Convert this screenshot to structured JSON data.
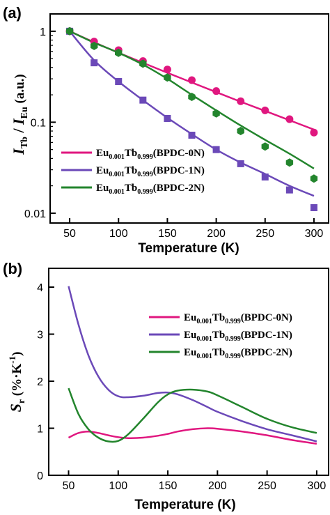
{
  "chart_data": [
    {
      "panel_label": "(a)",
      "type": "scatter",
      "xlabel": "Temperature (K)",
      "ylabel": {
        "main": "I",
        "sub": "Tb",
        "sep": " / ",
        "main2": "I",
        "sub2": "Eu",
        "unit": " (a.u.)"
      },
      "x_ticks": [
        50,
        100,
        150,
        200,
        250,
        300
      ],
      "y_ticks": [
        0.01,
        0.1,
        1
      ],
      "y_tick_labels": [
        "0.01",
        "0.1",
        "1"
      ],
      "xlim": [
        30,
        315
      ],
      "ylim": [
        0.0078,
        1.55
      ],
      "y_scale": "log",
      "legend_position": "bottom-left",
      "x": [
        50,
        75,
        100,
        125,
        150,
        175,
        200,
        225,
        250,
        275,
        300
      ],
      "series": [
        {
          "legend": {
            "a": "Eu",
            "a_sub": "0.001",
            "b": "Tb",
            "b_sub": "0.999",
            "rest": "(BPDC-0N)"
          },
          "color": "#e0177f",
          "marker": "circle",
          "points": [
            1.0,
            0.77,
            0.62,
            0.47,
            0.38,
            0.29,
            0.22,
            0.17,
            0.135,
            0.108,
            0.077
          ],
          "fit": [
            1.0,
            0.757,
            0.58,
            0.45,
            0.35,
            0.273,
            0.214,
            0.168,
            0.133,
            0.105,
            0.083
          ]
        },
        {
          "legend": {
            "a": "Eu",
            "a_sub": "0.001",
            "b": "Tb",
            "b_sub": "0.999",
            "rest": "(BPDC-1N)"
          },
          "color": "#6b49b8",
          "marker": "square",
          "points": [
            1.0,
            0.45,
            0.28,
            0.175,
            0.11,
            0.072,
            0.05,
            0.035,
            0.025,
            0.018,
            0.0115
          ],
          "fit": [
            1.0,
            0.48,
            0.28,
            0.175,
            0.112,
            0.074,
            0.05,
            0.036,
            0.027,
            0.02,
            0.0155
          ]
        },
        {
          "legend": {
            "a": "Eu",
            "a_sub": "0.001",
            "b": "Tb",
            "b_sub": "0.999",
            "rest": "(BPDC-2N)"
          },
          "color": "#23852d",
          "marker": "hexagon",
          "points": [
            1.0,
            0.69,
            0.58,
            0.44,
            0.31,
            0.19,
            0.125,
            0.08,
            0.054,
            0.036,
            0.024
          ],
          "fit": [
            1.0,
            0.75,
            0.58,
            0.43,
            0.3,
            0.2,
            0.135,
            0.092,
            0.064,
            0.045,
            0.031
          ]
        }
      ]
    },
    {
      "panel_label": "(b)",
      "type": "line",
      "xlabel": "Temperature (K)",
      "ylabel": {
        "main": "S",
        "sub": "r",
        "unit": " (%·K",
        "sup": "-1",
        "close": ")"
      },
      "x_ticks": [
        50,
        100,
        150,
        200,
        250,
        300
      ],
      "y_ticks": [
        0,
        1,
        2,
        3,
        4
      ],
      "xlim": [
        30,
        312
      ],
      "ylim": [
        0,
        4.4
      ],
      "legend_position": "top-right",
      "x": [
        50,
        60,
        70,
        80,
        90,
        100,
        110,
        125,
        140,
        150,
        160,
        175,
        190,
        200,
        225,
        250,
        275,
        300
      ],
      "series": [
        {
          "legend": {
            "a": "Eu",
            "a_sub": "0.001",
            "b": "Tb",
            "b_sub": "0.999",
            "rest": "(BPDC-0N)"
          },
          "color": "#e0177f",
          "values": [
            0.8,
            0.9,
            0.93,
            0.9,
            0.85,
            0.81,
            0.79,
            0.8,
            0.84,
            0.88,
            0.93,
            0.98,
            1.0,
            0.99,
            0.93,
            0.85,
            0.75,
            0.67
          ]
        },
        {
          "legend": {
            "a": "Eu",
            "a_sub": "0.001",
            "b": "Tb",
            "b_sub": "0.999",
            "rest": "(BPDC-1N)"
          },
          "color": "#6b49b8",
          "values": [
            4.02,
            3.2,
            2.55,
            2.1,
            1.82,
            1.68,
            1.66,
            1.69,
            1.75,
            1.76,
            1.72,
            1.6,
            1.45,
            1.35,
            1.15,
            0.98,
            0.85,
            0.72
          ]
        },
        {
          "legend": {
            "a": "Eu",
            "a_sub": "0.001",
            "b": "Tb",
            "b_sub": "0.999",
            "rest": "(BPDC-2N)"
          },
          "color": "#23852d",
          "values": [
            1.85,
            1.3,
            0.98,
            0.8,
            0.72,
            0.73,
            0.87,
            1.2,
            1.55,
            1.72,
            1.8,
            1.82,
            1.78,
            1.7,
            1.45,
            1.2,
            1.02,
            0.9
          ]
        }
      ]
    }
  ]
}
